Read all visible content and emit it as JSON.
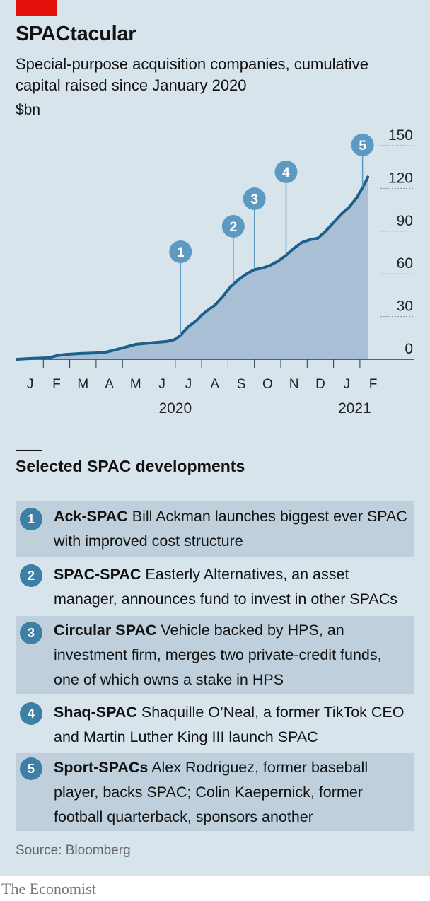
{
  "header": {
    "title": "SPACtacular",
    "subtitle": "Special-purpose acquisition companies, cumulative capital raised since January 2020",
    "unit": "$bn"
  },
  "chart_data": {
    "type": "area",
    "title": "SPACtacular",
    "ylabel": "$bn",
    "ylim": [
      0,
      150
    ],
    "yticks": [
      0,
      30,
      60,
      90,
      120,
      150
    ],
    "x_months": [
      "J",
      "F",
      "M",
      "A",
      "M",
      "J",
      "J",
      "A",
      "S",
      "O",
      "N",
      "D",
      "J",
      "F"
    ],
    "years": [
      "2020",
      "2021"
    ],
    "series": [
      {
        "name": "Cumulative capital raised",
        "x": [
          0,
          0.3,
          0.6,
          0.9,
          1.2,
          1.5,
          1.8,
          2.1,
          2.4,
          2.7,
          3.0,
          3.3,
          3.6,
          3.9,
          4.2,
          4.5,
          4.8,
          5.1,
          5.4,
          5.7,
          6.0,
          6.2,
          6.5,
          6.8,
          7.0,
          7.2,
          7.5,
          7.8,
          8.1,
          8.4,
          8.7,
          9.0,
          9.3,
          9.6,
          9.9,
          10.2,
          10.5,
          10.8,
          11.1,
          11.4,
          11.7,
          12.0,
          12.3,
          12.6,
          12.9,
          13.2,
          13.3
        ],
        "values": [
          0,
          0.3,
          0.6,
          0.8,
          1.0,
          2.5,
          3.3,
          3.7,
          4.0,
          4.2,
          4.4,
          4.7,
          6.0,
          7.5,
          9.0,
          10.5,
          11.0,
          11.5,
          12.0,
          12.5,
          14.0,
          17.0,
          23.0,
          27.0,
          31.0,
          34.0,
          38.0,
          44.0,
          51.0,
          56.0,
          60.0,
          63.0,
          64.0,
          66.0,
          69.0,
          73.0,
          78.0,
          82.0,
          84.0,
          85.0,
          90.0,
          96.0,
          102.0,
          107.0,
          114.0,
          124.0,
          128.0
        ]
      }
    ],
    "annotations": [
      {
        "label": "1",
        "x": 6.2
      },
      {
        "label": "2",
        "x": 8.2
      },
      {
        "label": "3",
        "x": 9.0
      },
      {
        "label": "4",
        "x": 10.2
      },
      {
        "label": "5",
        "x": 13.1
      }
    ]
  },
  "developments": {
    "title": "Selected SPAC developments",
    "items": [
      {
        "num": "1",
        "name": "Ack-SPAC",
        "text": "Bill Ackman launches biggest ever SPAC with improved cost structure"
      },
      {
        "num": "2",
        "name": "SPAC-SPAC",
        "text": "Easterly Alternatives, an asset manager, announces fund to invest in other SPACs"
      },
      {
        "num": "3",
        "name": "Circular SPAC",
        "text": "Vehicle backed by HPS, an investment firm, merges two private-credit funds, one of which owns a stake in HPS"
      },
      {
        "num": "4",
        "name": "Shaq-SPAC",
        "text": "Shaquille O’Neal, a former TikTok CEO and Martin Luther King III launch SPAC"
      },
      {
        "num": "5",
        "name": "Sport-SPACs",
        "text": "Alex Rodriguez, former baseball player, backs SPAC; Colin Kaepernick, former football quarterback, sponsors another"
      }
    ]
  },
  "footer": {
    "source": "Source: Bloomberg",
    "brand": "The Economist"
  },
  "colors": {
    "line": "#1b5f8a",
    "area": "#a9bfd6",
    "marker": "#5d9ac2",
    "red": "#e3120b",
    "panel": "#d7e4ec",
    "shade": "#bfd0dc"
  }
}
